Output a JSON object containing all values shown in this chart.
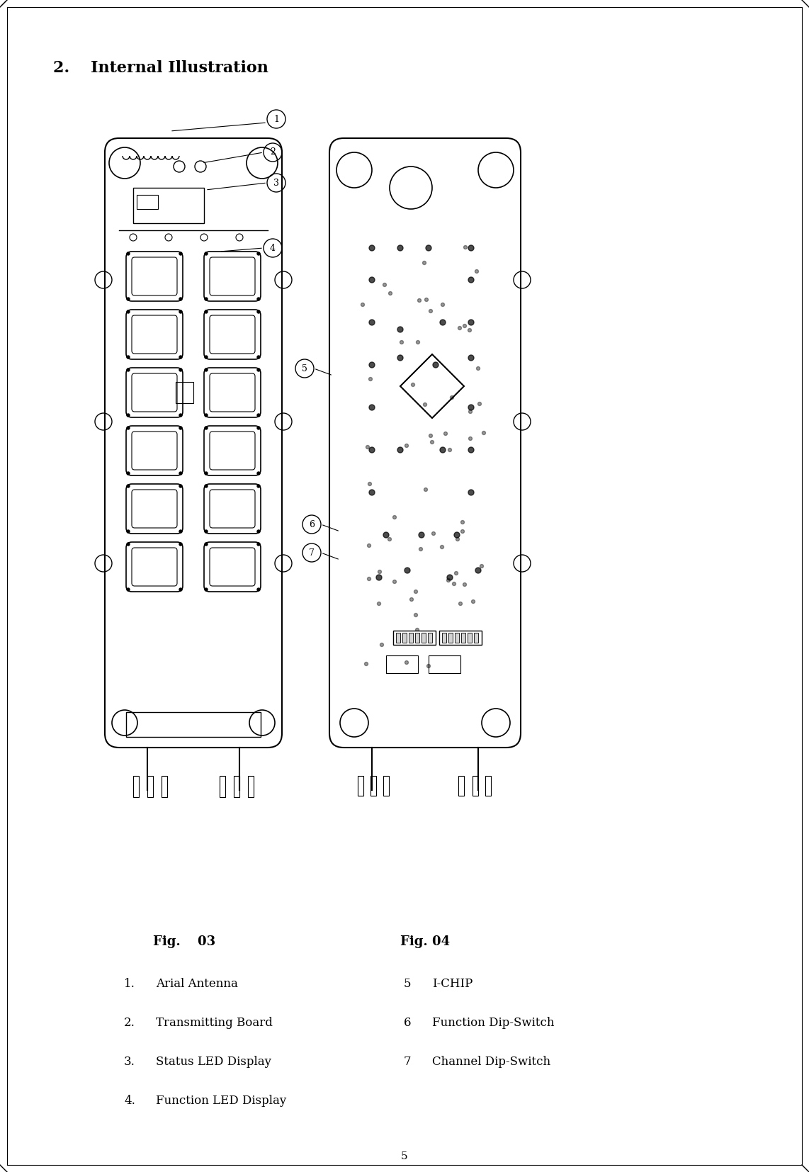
{
  "page_title": "2.  Internal Illustration",
  "fig03_label": "Fig.  03",
  "fig04_label": "Fig. 04",
  "items_left": [
    [
      "1.",
      "Arial Antenna"
    ],
    [
      "2.",
      "Transmitting Board"
    ],
    [
      "3.",
      "Status LED Display"
    ],
    [
      "4.",
      "Function LED Display"
    ]
  ],
  "items_right": [
    [
      "5",
      "I-CHIP"
    ],
    [
      "6",
      "Function Dip-Switch"
    ],
    [
      "7",
      "Channel Dip-Switch"
    ]
  ],
  "page_number": "5",
  "bg_color": "#ffffff",
  "text_color": "#000000",
  "border_color": "#000000"
}
